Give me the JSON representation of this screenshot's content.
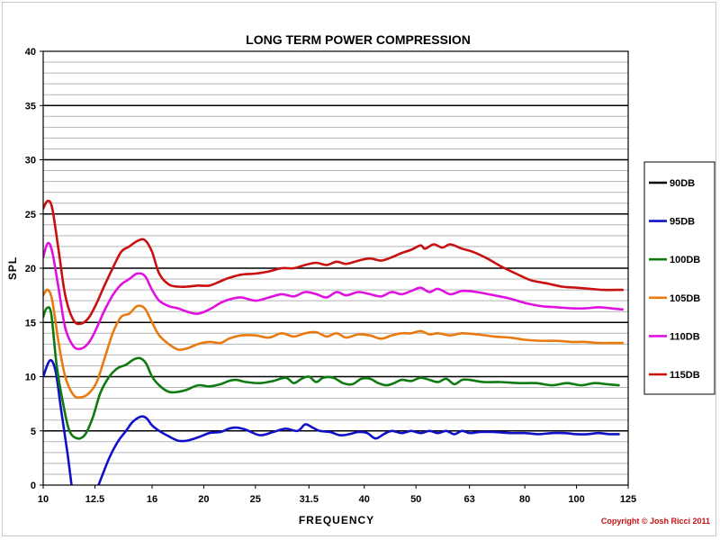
{
  "chart_data": {
    "type": "line",
    "title": "LONG TERM POWER COMPRESSION",
    "xlabel": "FREQUENCY",
    "ylabel": "SPL",
    "x_scale": "log",
    "xlim": [
      10,
      125
    ],
    "ylim": [
      0,
      40
    ],
    "x_ticks": [
      10,
      12.5,
      16,
      20,
      25,
      31.5,
      40,
      50,
      63,
      80,
      100,
      125
    ],
    "x_tick_labels": [
      "10",
      "12.5",
      "16",
      "20",
      "25",
      "31.5",
      "40",
      "50",
      "63",
      "80",
      "100",
      "125"
    ],
    "y_ticks": [
      0,
      5,
      10,
      15,
      20,
      25,
      30,
      35,
      40
    ],
    "grid": "horizontal",
    "legend": "right",
    "series": [
      {
        "name": "90DB",
        "color": "#000000",
        "x": [],
        "y": []
      },
      {
        "name": "95DB",
        "color": "#1010c8",
        "x": [
          10,
          10.3,
          10.55,
          10.8,
          11.1,
          11.3,
          12.7,
          13.3,
          13.8,
          14.3,
          14.7,
          15.2,
          15.6,
          16,
          16.5,
          17.2,
          17.9,
          18.6,
          19.5,
          20.5,
          21.5,
          22.3,
          23,
          24,
          25.5,
          27,
          28.5,
          30,
          31,
          32,
          33,
          34.5,
          36,
          37.5,
          39,
          40.5,
          42,
          43.5,
          45,
          47,
          49,
          51,
          53,
          55,
          57,
          59,
          61,
          63,
          66,
          70,
          75,
          80,
          85,
          90,
          95,
          100,
          105,
          110,
          115,
          120
        ],
        "y": [
          10,
          11.5,
          10.5,
          7,
          3,
          0,
          0,
          2.5,
          4,
          5,
          5.8,
          6.3,
          6.2,
          5.5,
          5,
          4.5,
          4.1,
          4.1,
          4.4,
          4.8,
          4.9,
          5.2,
          5.3,
          5.1,
          4.6,
          4.9,
          5.2,
          5.0,
          5.6,
          5.3,
          5.0,
          4.9,
          4.6,
          4.7,
          4.9,
          4.8,
          4.3,
          4.7,
          5.0,
          4.8,
          5.0,
          4.8,
          5.0,
          4.8,
          5.0,
          4.7,
          5.0,
          4.8,
          4.9,
          4.9,
          4.8,
          4.8,
          4.7,
          4.8,
          4.8,
          4.7,
          4.7,
          4.8,
          4.7,
          4.7
        ]
      },
      {
        "name": "100DB",
        "color": "#0e7a10",
        "x": [
          10,
          10.15,
          10.35,
          10.6,
          10.9,
          11.2,
          11.6,
          12,
          12.4,
          12.8,
          13.3,
          13.8,
          14.3,
          14.8,
          15.2,
          15.6,
          16,
          16.5,
          17.2,
          17.9,
          18.6,
          19.5,
          20.5,
          21.5,
          22.3,
          23,
          24,
          25.5,
          27,
          28.5,
          29.5,
          30.5,
          31.5,
          32.5,
          33.5,
          35,
          36.5,
          38,
          39.5,
          41,
          42.5,
          44,
          45.5,
          47,
          49,
          51,
          53,
          55,
          57,
          59,
          61,
          63,
          67,
          72,
          78,
          84,
          90,
          96,
          102,
          108,
          114,
          120
        ],
        "y": [
          15.5,
          16.3,
          15.8,
          11,
          7.5,
          5,
          4.3,
          4.7,
          6.3,
          8.5,
          10,
          10.8,
          11.1,
          11.6,
          11.7,
          11.2,
          10,
          9.2,
          8.6,
          8.6,
          8.8,
          9.2,
          9.1,
          9.3,
          9.6,
          9.7,
          9.5,
          9.4,
          9.6,
          9.9,
          9.4,
          9.8,
          10.0,
          9.5,
          9.9,
          9.9,
          9.4,
          9.3,
          9.8,
          9.8,
          9.4,
          9.2,
          9.4,
          9.7,
          9.6,
          9.9,
          9.7,
          9.5,
          9.8,
          9.3,
          9.7,
          9.7,
          9.5,
          9.5,
          9.4,
          9.4,
          9.2,
          9.4,
          9.2,
          9.4,
          9.3,
          9.2
        ]
      },
      {
        "name": "105DB",
        "color": "#e87a10",
        "x": [
          10,
          10.2,
          10.4,
          10.7,
          11,
          11.4,
          11.8,
          12.2,
          12.6,
          13,
          13.5,
          14,
          14.5,
          15,
          15.5,
          16,
          16.5,
          17.2,
          17.9,
          18.6,
          19.5,
          20.5,
          21.5,
          22.3,
          23.5,
          25,
          26.5,
          28,
          29.5,
          31,
          32.5,
          34,
          35.5,
          37,
          39,
          41,
          43,
          45,
          47,
          49,
          51,
          53,
          55,
          58,
          61,
          65,
          70,
          75,
          80,
          86,
          92,
          98,
          104,
          110,
          116,
          122
        ],
        "y": [
          17.5,
          18,
          17,
          13,
          10,
          8.3,
          8.1,
          8.5,
          9.5,
          11.5,
          14,
          15.5,
          15.8,
          16.5,
          16.3,
          15,
          13.8,
          13.0,
          12.5,
          12.6,
          13.0,
          13.2,
          13.1,
          13.5,
          13.8,
          13.8,
          13.6,
          14.0,
          13.7,
          14.0,
          14.1,
          13.7,
          14.0,
          13.6,
          13.9,
          13.8,
          13.5,
          13.8,
          14.0,
          14.0,
          14.2,
          13.9,
          14.0,
          13.8,
          14.0,
          13.9,
          13.7,
          13.6,
          13.4,
          13.3,
          13.3,
          13.2,
          13.2,
          13.1,
          13.1,
          13.1
        ]
      },
      {
        "name": "110DB",
        "color": "#e010e0",
        "x": [
          10,
          10.2,
          10.4,
          10.7,
          11,
          11.4,
          11.8,
          12.2,
          12.6,
          13,
          13.5,
          14,
          14.5,
          15,
          15.5,
          16,
          16.5,
          17.2,
          17.9,
          18.6,
          19.5,
          20.5,
          21.5,
          22.3,
          23.5,
          25,
          26.5,
          28,
          29.5,
          31,
          32.5,
          34,
          35.5,
          37,
          39,
          41,
          43,
          45,
          47,
          49,
          51,
          53,
          55,
          58,
          61,
          65,
          70,
          75,
          80,
          86,
          92,
          98,
          104,
          110,
          116,
          122
        ],
        "y": [
          21,
          22.3,
          21.5,
          18,
          14.5,
          12.8,
          12.6,
          13.2,
          14.5,
          16,
          17.5,
          18.5,
          19,
          19.5,
          19.3,
          18,
          17,
          16.5,
          16.3,
          16.0,
          15.8,
          16.2,
          16.8,
          17.1,
          17.3,
          17.0,
          17.3,
          17.6,
          17.4,
          17.8,
          17.6,
          17.3,
          17.8,
          17.5,
          17.8,
          17.6,
          17.4,
          17.8,
          17.6,
          17.9,
          18.2,
          17.8,
          18.1,
          17.6,
          17.9,
          17.8,
          17.5,
          17.2,
          16.8,
          16.5,
          16.4,
          16.3,
          16.3,
          16.4,
          16.3,
          16.2
        ]
      },
      {
        "name": "115DB",
        "color": "#c81010",
        "x": [
          10,
          10.2,
          10.4,
          10.7,
          11,
          11.4,
          11.8,
          12.2,
          12.6,
          13,
          13.5,
          14,
          14.5,
          15,
          15.5,
          16,
          16.5,
          17.2,
          17.9,
          18.6,
          19.5,
          20.5,
          21.5,
          22.3,
          23.5,
          25,
          26.5,
          28,
          29.5,
          31,
          32.5,
          34,
          35.5,
          37,
          39,
          41,
          43,
          45,
          47,
          49,
          51,
          52,
          54,
          56,
          58,
          61,
          64,
          68,
          72,
          77,
          82,
          88,
          94,
          100,
          106,
          112,
          118,
          122
        ],
        "y": [
          25.5,
          26.2,
          25.5,
          21.5,
          17.5,
          15.2,
          14.9,
          15.5,
          16.8,
          18.3,
          20,
          21.5,
          22,
          22.5,
          22.6,
          21.5,
          19.5,
          18.5,
          18.3,
          18.3,
          18.4,
          18.4,
          18.8,
          19.1,
          19.4,
          19.5,
          19.7,
          20.0,
          20.0,
          20.3,
          20.5,
          20.3,
          20.6,
          20.4,
          20.7,
          20.9,
          20.7,
          21.0,
          21.4,
          21.7,
          22.1,
          21.8,
          22.2,
          21.9,
          22.2,
          21.8,
          21.5,
          20.9,
          20.2,
          19.5,
          18.9,
          18.6,
          18.3,
          18.2,
          18.1,
          18.0,
          18.0,
          18.0
        ]
      }
    ]
  },
  "copyright": "Copyright © Josh Ricci 2011"
}
